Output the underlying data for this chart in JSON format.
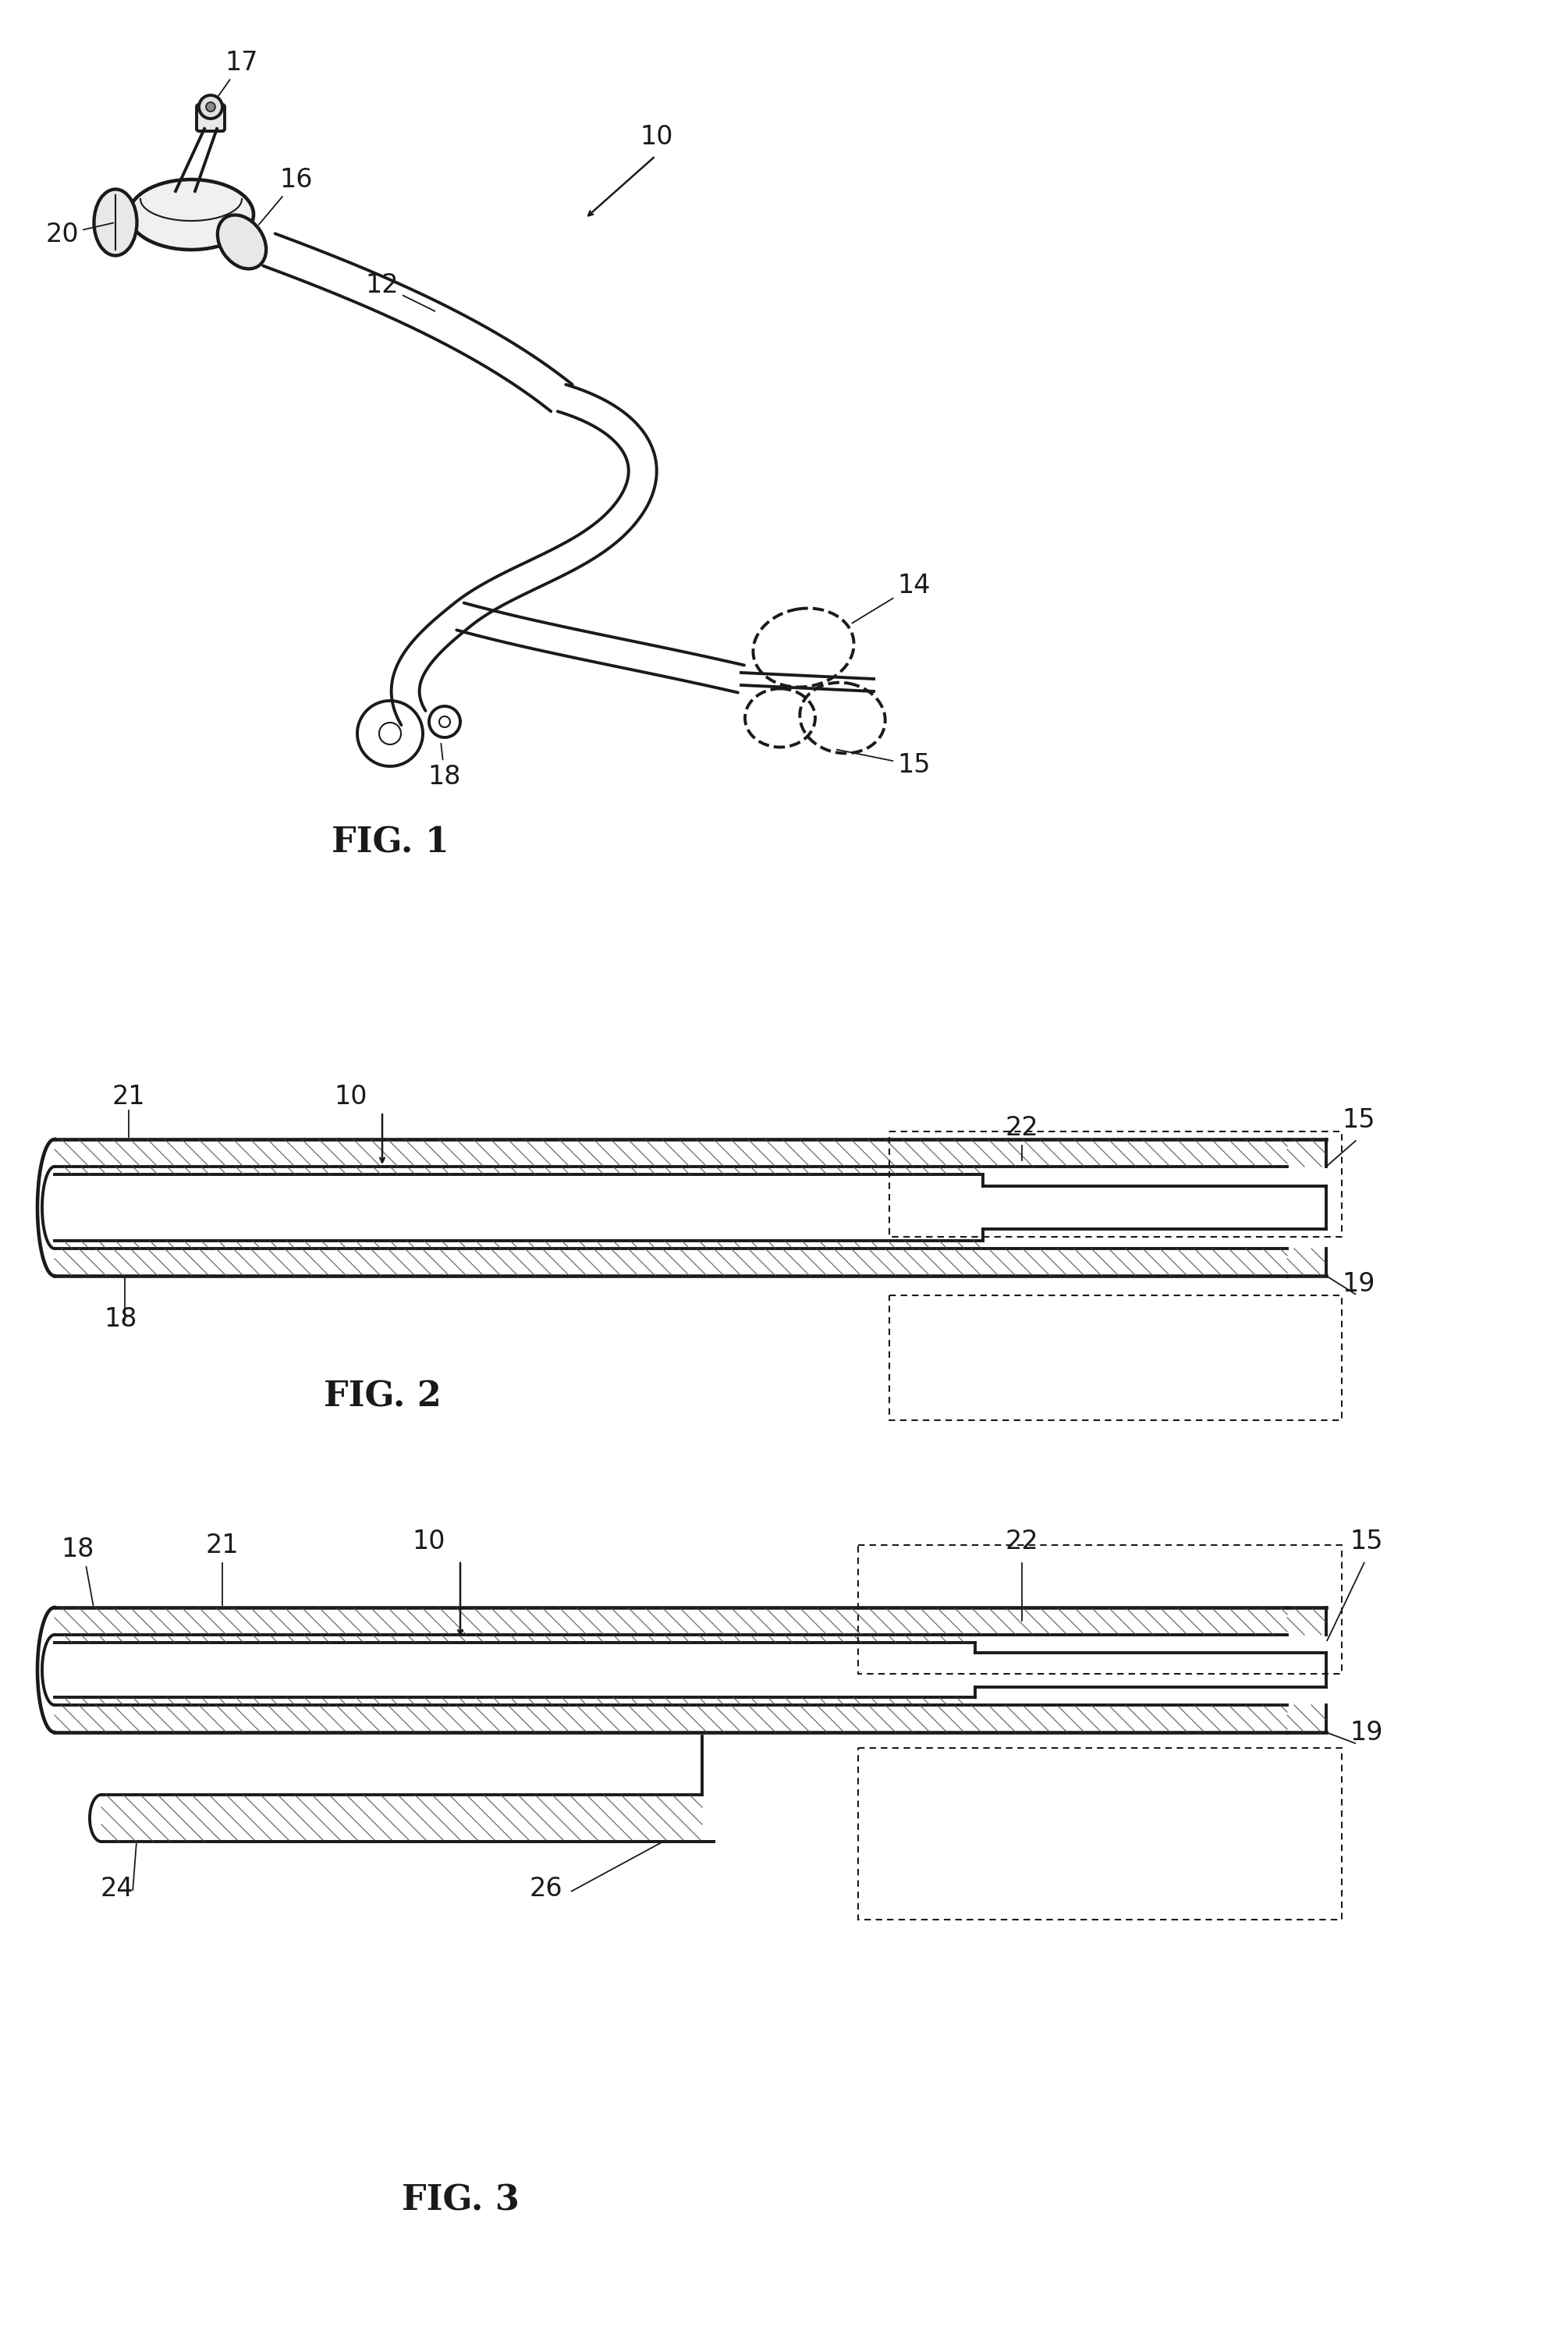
{
  "background_color": "#ffffff",
  "fig_label_fontsize": 32,
  "annotation_fontsize": 24,
  "lw_main": 2.8,
  "lw_thin": 1.5,
  "color_main": "#1a1a1a",
  "color_hatch": "#444444",
  "fig1_label": "FIG. 1",
  "fig2_label": "FIG. 2",
  "fig3_label": "FIG. 3"
}
